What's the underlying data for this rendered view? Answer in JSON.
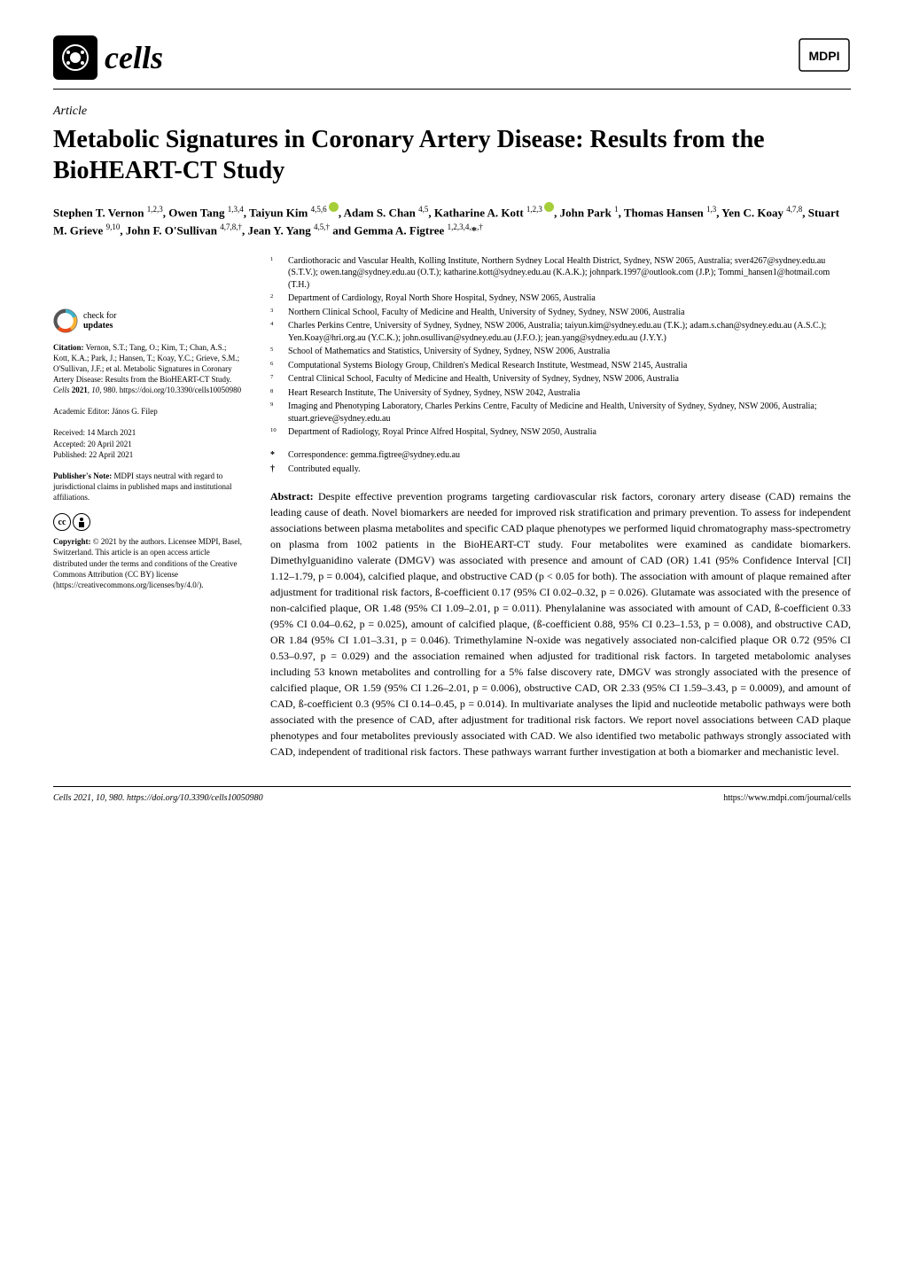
{
  "journal": {
    "name": "cells",
    "publisher": "MDPI"
  },
  "article": {
    "type": "Article",
    "title": "Metabolic Signatures in Coronary Artery Disease: Results from the BioHEART-CT Study",
    "authors_html": "Stephen T. Vernon <sup>1,2,3</sup>, Owen Tang <sup>1,3,4</sup>, Taiyun Kim <sup>4,5,6</sup> ⓘ, Adam S. Chan <sup>4,5</sup>, Katharine A. Kott <sup>1,2,3</sup> ⓘ, John Park <sup>1</sup>, Thomas Hansen <sup>1,3</sup>, Yen C. Koay <sup>4,7,8</sup>, Stuart M. Grieve <sup>9,10</sup>, John F. O'Sullivan <sup>4,7,8,†</sup>, Jean Y. Yang <sup>4,5,†</sup> and Gemma A. Figtree <sup>1,2,3,4,</sup>*<sup>,†</sup>"
  },
  "affiliations": [
    {
      "num": "1",
      "text": "Cardiothoracic and Vascular Health, Kolling Institute, Northern Sydney Local Health District, Sydney, NSW 2065, Australia; sver4267@sydney.edu.au (S.T.V.); owen.tang@sydney.edu.au (O.T.); katharine.kott@sydney.edu.au (K.A.K.); johnpark.1997@outlook.com (J.P.); Tommi_hansen1@hotmail.com (T.H.)"
    },
    {
      "num": "2",
      "text": "Department of Cardiology, Royal North Shore Hospital, Sydney, NSW 2065, Australia"
    },
    {
      "num": "3",
      "text": "Northern Clinical School, Faculty of Medicine and Health, University of Sydney, Sydney, NSW 2006, Australia"
    },
    {
      "num": "4",
      "text": "Charles Perkins Centre, University of Sydney, Sydney, NSW 2006, Australia; taiyun.kim@sydney.edu.au (T.K.); adam.s.chan@sydney.edu.au (A.S.C.); Yen.Koay@hri.org.au (Y.C.K.); john.osullivan@sydney.edu.au (J.F.O.); jean.yang@sydney.edu.au (J.Y.Y.)"
    },
    {
      "num": "5",
      "text": "School of Mathematics and Statistics, University of Sydney, Sydney, NSW 2006, Australia"
    },
    {
      "num": "6",
      "text": "Computational Systems Biology Group, Children's Medical Research Institute, Westmead, NSW 2145, Australia"
    },
    {
      "num": "7",
      "text": "Central Clinical School, Faculty of Medicine and Health, University of Sydney, Sydney, NSW 2006, Australia"
    },
    {
      "num": "8",
      "text": "Heart Research Institute, The University of Sydney, Sydney, NSW 2042, Australia"
    },
    {
      "num": "9",
      "text": "Imaging and Phenotyping Laboratory, Charles Perkins Centre, Faculty of Medicine and Health, University of Sydney, Sydney, NSW 2006, Australia; stuart.grieve@sydney.edu.au"
    },
    {
      "num": "10",
      "text": "Department of Radiology, Royal Prince Alfred Hospital, Sydney, NSW 2050, Australia"
    }
  ],
  "correspondence": {
    "marker": "*",
    "text": "Correspondence: gemma.figtree@sydney.edu.au"
  },
  "equal_contribution": {
    "marker": "†",
    "text": "Contributed equally."
  },
  "sidebar": {
    "check_updates_line1": "check for",
    "check_updates_line2": "updates",
    "citation_label": "Citation:",
    "citation_text": " Vernon, S.T.; Tang, O.; Kim, T.; Chan, A.S.; Kott, K.A.; Park, J.; Hansen, T.; Koay, Y.C.; Grieve, S.M.; O'Sullivan, J.F.; et al. Metabolic Signatures in Coronary Artery Disease: Results from the BioHEART-CT Study. ",
    "citation_journal": "Cells",
    "citation_year": " 2021",
    "citation_vol": ", 10",
    "citation_pages": ", 980. https://doi.org/10.3390/cells10050980",
    "editor": "Academic Editor: János G. Filep",
    "received": "Received: 14 March 2021",
    "accepted": "Accepted: 20 April 2021",
    "published": "Published: 22 April 2021",
    "publisher_note_label": "Publisher's Note:",
    "publisher_note_text": " MDPI stays neutral with regard to jurisdictional claims in published maps and institutional affiliations.",
    "copyright_label": "Copyright:",
    "copyright_text": " © 2021 by the authors. Licensee MDPI, Basel, Switzerland. This article is an open access article distributed under the terms and conditions of the Creative Commons Attribution (CC BY) license (https://creativecommons.org/licenses/by/4.0/)."
  },
  "abstract": {
    "label": "Abstract:",
    "text": " Despite effective prevention programs targeting cardiovascular risk factors, coronary artery disease (CAD) remains the leading cause of death. Novel biomarkers are needed for improved risk stratification and primary prevention. To assess for independent associations between plasma metabolites and specific CAD plaque phenotypes we performed liquid chromatography mass-spectrometry on plasma from 1002 patients in the BioHEART-CT study. Four metabolites were examined as candidate biomarkers. Dimethylguanidino valerate (DMGV) was associated with presence and amount of CAD (OR) 1.41 (95% Confidence Interval [CI] 1.12–1.79, p = 0.004), calcified plaque, and obstructive CAD (p < 0.05 for both). The association with amount of plaque remained after adjustment for traditional risk factors, ß-coefficient 0.17 (95% CI 0.02–0.32, p = 0.026). Glutamate was associated with the presence of non-calcified plaque, OR 1.48 (95% CI 1.09–2.01, p = 0.011). Phenylalanine was associated with amount of CAD, ß-coefficient 0.33 (95% CI 0.04–0.62, p = 0.025), amount of calcified plaque, (ß-coefficient 0.88, 95% CI 0.23–1.53, p = 0.008), and obstructive CAD, OR 1.84 (95% CI 1.01–3.31, p = 0.046). Trimethylamine N-oxide was negatively associated non-calcified plaque OR 0.72 (95% CI 0.53–0.97, p = 0.029) and the association remained when adjusted for traditional risk factors. In targeted metabolomic analyses including 53 known metabolites and controlling for a 5% false discovery rate, DMGV was strongly associated with the presence of calcified plaque, OR 1.59 (95% CI 1.26–2.01, p = 0.006), obstructive CAD, OR 2.33 (95% CI 1.59–3.43, p = 0.0009), and amount of CAD, ß-coefficient 0.3 (95% CI 0.14–0.45, p = 0.014). In multivariate analyses the lipid and nucleotide metabolic pathways were both associated with the presence of CAD, after adjustment for traditional risk factors. We report novel associations between CAD plaque phenotypes and four metabolites previously associated with CAD. We also identified two metabolic pathways strongly associated with CAD, independent of traditional risk factors. These pathways warrant further investigation at both a biomarker and mechanistic level."
  },
  "footer": {
    "left": "Cells 2021, 10, 980. https://doi.org/10.3390/cells10050980",
    "right": "https://www.mdpi.com/journal/cells"
  },
  "colors": {
    "text": "#000000",
    "background": "#ffffff",
    "orcid": "#a6ce39",
    "check_teal": "#3eb1c8",
    "check_yellow": "#f9b233",
    "check_red": "#e94e1b"
  }
}
